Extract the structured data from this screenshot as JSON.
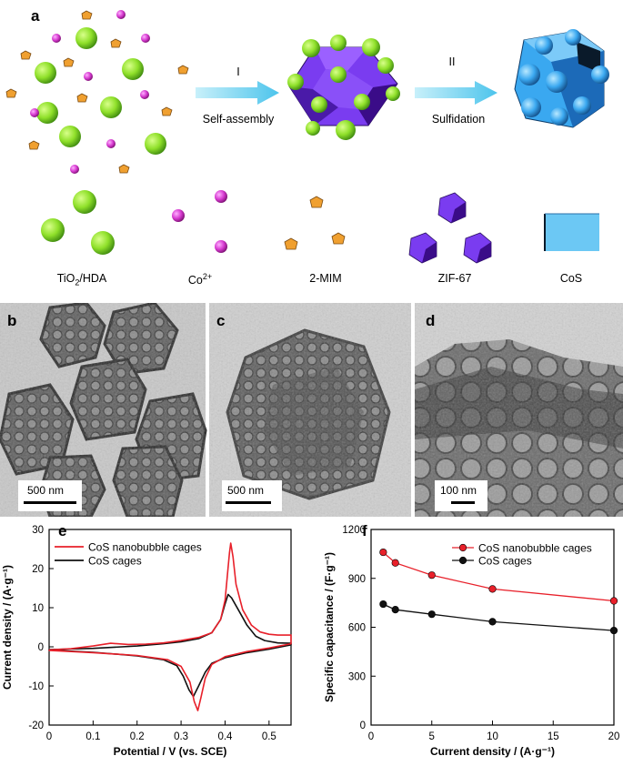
{
  "panels": {
    "a": "a",
    "b": "b",
    "c": "c",
    "d": "d",
    "e": "e",
    "f": "f"
  },
  "scheme": {
    "step1_numeral": "I",
    "step1_label": "Self-assembly",
    "step2_numeral": "II",
    "step2_label": "Sulfidation",
    "legend": {
      "tio2_main": "TiO",
      "tio2_sub": "2",
      "tio2_rest": "/HDA",
      "co_main": "Co",
      "co_sup": "2+",
      "mim": "2-MIM",
      "zif": "ZIF-67",
      "cos": "CoS"
    },
    "colors": {
      "tio2": "#8fe02a",
      "co": "#d63ad0",
      "mim": "#f0a030",
      "zif": "#7a3cf0",
      "cos": "#3aa8f0",
      "cos_square": "#6cc8f4",
      "arrow": "#6fd8f0"
    }
  },
  "tem": {
    "b_scale": "500 nm",
    "c_scale": "500 nm",
    "d_scale": "100 nm"
  },
  "chart_data": [
    {
      "panel": "e",
      "type": "line",
      "xlabel": "Potential / V (vs. SCE)",
      "ylabel": "Current density / (A·g⁻¹)",
      "xlim": [
        0,
        0.55
      ],
      "ylim": [
        -20,
        30
      ],
      "xticks": [
        0,
        0.1,
        0.2,
        0.3,
        0.4,
        0.5
      ],
      "xtick_labels": [
        "0",
        "0.1",
        "0.2",
        "0.3",
        "0.4",
        "0.5"
      ],
      "yticks": [
        -20,
        -10,
        0,
        10,
        20,
        30
      ],
      "ytick_labels": [
        "-20",
        "-10",
        "0",
        "10",
        "20",
        "30"
      ],
      "legend_position": "top-left",
      "series": [
        {
          "name": "CoS nanobubble cages",
          "color": "#e8202a",
          "anodic": [
            [
              0,
              -0.8
            ],
            [
              0.05,
              -0.5
            ],
            [
              0.1,
              0.2
            ],
            [
              0.14,
              0.9
            ],
            [
              0.18,
              0.6
            ],
            [
              0.22,
              0.7
            ],
            [
              0.26,
              1.0
            ],
            [
              0.3,
              1.6
            ],
            [
              0.34,
              2.4
            ],
            [
              0.37,
              3.6
            ],
            [
              0.39,
              7
            ],
            [
              0.4,
              12
            ],
            [
              0.405,
              18
            ],
            [
              0.41,
              24
            ],
            [
              0.413,
              26.5
            ],
            [
              0.418,
              23
            ],
            [
              0.425,
              16
            ],
            [
              0.44,
              9.5
            ],
            [
              0.46,
              5.5
            ],
            [
              0.48,
              3.8
            ],
            [
              0.5,
              3.2
            ],
            [
              0.52,
              3.0
            ],
            [
              0.55,
              3.0
            ]
          ],
          "cathodic": [
            [
              0.55,
              0.8
            ],
            [
              0.5,
              -0.3
            ],
            [
              0.45,
              -1.2
            ],
            [
              0.4,
              -2.5
            ],
            [
              0.37,
              -4.5
            ],
            [
              0.355,
              -8
            ],
            [
              0.345,
              -13
            ],
            [
              0.338,
              -16.3
            ],
            [
              0.33,
              -14
            ],
            [
              0.32,
              -9
            ],
            [
              0.3,
              -5
            ],
            [
              0.27,
              -3.3
            ],
            [
              0.2,
              -2.2
            ],
            [
              0.1,
              -1.5
            ],
            [
              0,
              -0.9
            ]
          ]
        },
        {
          "name": "CoS cages",
          "color": "#111111",
          "anodic": [
            [
              0,
              -0.7
            ],
            [
              0.1,
              -0.4
            ],
            [
              0.2,
              0.2
            ],
            [
              0.26,
              0.8
            ],
            [
              0.3,
              1.3
            ],
            [
              0.34,
              2.1
            ],
            [
              0.37,
              3.6
            ],
            [
              0.39,
              7
            ],
            [
              0.4,
              11
            ],
            [
              0.407,
              13.4
            ],
            [
              0.415,
              12.5
            ],
            [
              0.43,
              9.5
            ],
            [
              0.45,
              5.5
            ],
            [
              0.47,
              2.7
            ],
            [
              0.49,
              1.6
            ],
            [
              0.52,
              1.0
            ],
            [
              0.55,
              0.9
            ]
          ],
          "cathodic": [
            [
              0.55,
              0.5
            ],
            [
              0.5,
              -0.6
            ],
            [
              0.45,
              -1.5
            ],
            [
              0.4,
              -2.8
            ],
            [
              0.37,
              -4.2
            ],
            [
              0.355,
              -6.5
            ],
            [
              0.34,
              -10
            ],
            [
              0.328,
              -12.7
            ],
            [
              0.318,
              -11
            ],
            [
              0.305,
              -7.5
            ],
            [
              0.29,
              -4.8
            ],
            [
              0.26,
              -3.3
            ],
            [
              0.2,
              -2.3
            ],
            [
              0.1,
              -1.4
            ],
            [
              0,
              -0.8
            ]
          ]
        }
      ]
    },
    {
      "panel": "f",
      "type": "line",
      "xlabel": "Current density / (A·g⁻¹)",
      "ylabel": "Specific capacitance / (F·g⁻¹)",
      "xlim": [
        0,
        20
      ],
      "ylim": [
        0,
        1200
      ],
      "xticks": [
        0,
        5,
        10,
        15,
        20
      ],
      "xtick_labels": [
        "0",
        "5",
        "10",
        "15",
        "20"
      ],
      "yticks": [
        0,
        300,
        600,
        900,
        1200
      ],
      "ytick_labels": [
        "0",
        "300",
        "600",
        "900",
        "1200"
      ],
      "legend_position": "top-right",
      "x": [
        1,
        2,
        5,
        10,
        20
      ],
      "series": [
        {
          "name": "CoS nanobubble cages",
          "color": "#e8202a",
          "values": [
            1060,
            995,
            920,
            835,
            762
          ]
        },
        {
          "name": "CoS cages",
          "color": "#111111",
          "values": [
            742,
            708,
            680,
            634,
            580
          ]
        }
      ]
    }
  ]
}
